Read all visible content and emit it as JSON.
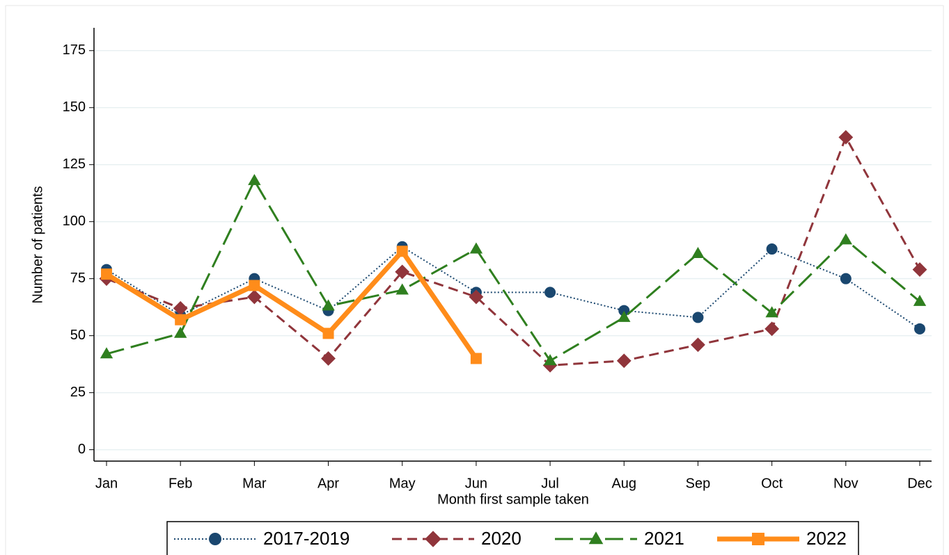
{
  "chart_data": {
    "type": "line",
    "x_label": "Month first sample taken",
    "y_label": "Number of patients",
    "categories": [
      "Jan",
      "Feb",
      "Mar",
      "Apr",
      "May",
      "Jun",
      "Jul",
      "Aug",
      "Sep",
      "Oct",
      "Nov",
      "Dec"
    ],
    "ylim": [
      -5,
      185
    ],
    "yticks": [
      0,
      25,
      50,
      75,
      100,
      125,
      150,
      175
    ],
    "grid": true,
    "legend": "bottom",
    "series": [
      {
        "name": "2017-2019",
        "color": "#1a476f",
        "line_style": "dotted",
        "marker": "circle",
        "values": [
          79,
          59,
          75,
          61,
          89,
          69,
          69,
          61,
          58,
          88,
          75,
          53
        ]
      },
      {
        "name": "2020",
        "color": "#90353b",
        "line_style": "dashed",
        "marker": "diamond",
        "values": [
          75,
          62,
          67,
          40,
          78,
          67,
          37,
          39,
          46,
          53,
          137,
          79
        ]
      },
      {
        "name": "2021",
        "color": "#2f7f1f",
        "line_style": "longdash",
        "marker": "triangle",
        "values": [
          42,
          51,
          118,
          63,
          70,
          88,
          39,
          58,
          86,
          60,
          92,
          65
        ]
      },
      {
        "name": "2022",
        "color": "#ff8c1a",
        "line_style": "solid",
        "marker": "square",
        "values": [
          77,
          57,
          72,
          51,
          87,
          40,
          null,
          null,
          null,
          null,
          null,
          null
        ]
      }
    ]
  }
}
